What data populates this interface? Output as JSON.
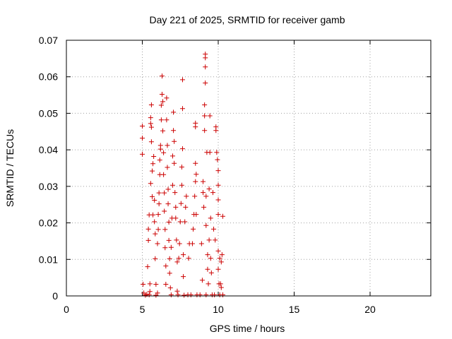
{
  "chart_data": {
    "type": "scatter",
    "title": "Day 221 of 2025, SRMTID for receiver gamb",
    "xlabel": "GPS time / hours",
    "ylabel": "SRMTID / TECUs",
    "xlim": [
      0,
      24
    ],
    "ylim": [
      0,
      0.07
    ],
    "x_ticks": [
      0,
      5,
      10,
      15,
      20
    ],
    "x_tick_labels": [
      "0",
      "5",
      "10",
      "15",
      "20"
    ],
    "y_ticks": [
      0,
      0.01,
      0.02,
      0.03,
      0.04,
      0.05,
      0.06,
      0.07
    ],
    "y_tick_labels": [
      "0",
      "0.01",
      "0.02",
      "0.03",
      "0.04",
      "0.05",
      "0.06",
      "0.07"
    ],
    "grid": true,
    "marker": "+",
    "marker_color": "#cc0000",
    "series": [
      {
        "name": "SRMTID",
        "points": [
          [
            5.0,
            0.0465
          ],
          [
            5.0,
            0.0432
          ],
          [
            5.0,
            0.0388
          ],
          [
            5.05,
            0.0032
          ],
          [
            5.1,
            0.0008
          ],
          [
            5.2,
            0.0002
          ],
          [
            5.3,
            0.0004
          ],
          [
            5.35,
            0.008
          ],
          [
            5.4,
            0.0183
          ],
          [
            5.4,
            0.0152
          ],
          [
            5.45,
            0.0222
          ],
          [
            5.45,
            0.0003
          ],
          [
            5.5,
            0.0033
          ],
          [
            5.5,
            0.0012
          ],
          [
            5.55,
            0.0308
          ],
          [
            5.55,
            0.0488
          ],
          [
            5.55,
            0.0472
          ],
          [
            5.6,
            0.0523
          ],
          [
            5.6,
            0.0462
          ],
          [
            5.6,
            0.0422
          ],
          [
            5.65,
            0.0342
          ],
          [
            5.65,
            0.0272
          ],
          [
            5.7,
            0.0222
          ],
          [
            5.7,
            0.0362
          ],
          [
            5.75,
            0.0382
          ],
          [
            5.8,
            0.0262
          ],
          [
            5.8,
            0.0203
          ],
          [
            5.85,
            0.0102
          ],
          [
            5.85,
            0.017
          ],
          [
            5.9,
            0.0002
          ],
          [
            5.9,
            0.0032
          ],
          [
            6.0,
            0.0008
          ],
          [
            6.0,
            0.0143
          ],
          [
            6.05,
            0.0182
          ],
          [
            6.05,
            0.0223
          ],
          [
            6.1,
            0.0252
          ],
          [
            6.1,
            0.0282
          ],
          [
            6.15,
            0.0332
          ],
          [
            6.15,
            0.0372
          ],
          [
            6.2,
            0.0402
          ],
          [
            6.2,
            0.0412
          ],
          [
            6.25,
            0.0482
          ],
          [
            6.25,
            0.0522
          ],
          [
            6.3,
            0.0552
          ],
          [
            6.3,
            0.0602
          ],
          [
            6.35,
            0.0532
          ],
          [
            6.35,
            0.0452
          ],
          [
            6.4,
            0.0392
          ],
          [
            6.4,
            0.0332
          ],
          [
            6.45,
            0.0282
          ],
          [
            6.45,
            0.0232
          ],
          [
            6.5,
            0.0182
          ],
          [
            6.5,
            0.0132
          ],
          [
            6.55,
            0.0082
          ],
          [
            6.55,
            0.0032
          ],
          [
            6.6,
            0.0482
          ],
          [
            6.6,
            0.0542
          ],
          [
            6.65,
            0.0412
          ],
          [
            6.65,
            0.0352
          ],
          [
            6.7,
            0.0292
          ],
          [
            6.7,
            0.0252
          ],
          [
            6.75,
            0.0202
          ],
          [
            6.75,
            0.0152
          ],
          [
            6.8,
            0.0102
          ],
          [
            6.8,
            0.0062
          ],
          [
            6.85,
            0.0022
          ],
          [
            6.9,
            0.0003
          ],
          [
            6.9,
            0.0133
          ],
          [
            6.95,
            0.0213
          ],
          [
            7.0,
            0.0303
          ],
          [
            7.0,
            0.0383
          ],
          [
            7.05,
            0.0453
          ],
          [
            7.05,
            0.0503
          ],
          [
            7.1,
            0.0423
          ],
          [
            7.1,
            0.0363
          ],
          [
            7.15,
            0.0283
          ],
          [
            7.2,
            0.0243
          ],
          [
            7.2,
            0.0213
          ],
          [
            7.25,
            0.0153
          ],
          [
            7.3,
            0.0093
          ],
          [
            7.3,
            0.0013
          ],
          [
            7.35,
            0.0003
          ],
          [
            7.4,
            0.0103
          ],
          [
            7.45,
            0.0143
          ],
          [
            7.5,
            0.0203
          ],
          [
            7.55,
            0.0253
          ],
          [
            7.6,
            0.0303
          ],
          [
            7.6,
            0.0353
          ],
          [
            7.65,
            0.0403
          ],
          [
            7.65,
            0.0513
          ],
          [
            7.65,
            0.0592
          ],
          [
            7.7,
            0.0113
          ],
          [
            7.7,
            0.0053
          ],
          [
            7.75,
            0.0002
          ],
          [
            7.8,
            0.0203
          ],
          [
            7.85,
            0.0243
          ],
          [
            7.9,
            0.0273
          ],
          [
            8.0,
            0.0003
          ],
          [
            8.05,
            0.0103
          ],
          [
            8.1,
            0.0143
          ],
          [
            8.2,
            0.0003
          ],
          [
            8.3,
            0.0143
          ],
          [
            8.35,
            0.0183
          ],
          [
            8.4,
            0.0223
          ],
          [
            8.45,
            0.0273
          ],
          [
            8.5,
            0.0313
          ],
          [
            8.5,
            0.0363
          ],
          [
            8.5,
            0.0473
          ],
          [
            8.5,
            0.0463
          ],
          [
            8.55,
            0.0333
          ],
          [
            8.55,
            0.0223
          ],
          [
            8.6,
            0.0003
          ],
          [
            8.8,
            0.0003
          ],
          [
            8.9,
            0.0143
          ],
          [
            8.95,
            0.0043
          ],
          [
            9.0,
            0.0313
          ],
          [
            9.0,
            0.0283
          ],
          [
            9.05,
            0.0243
          ],
          [
            9.1,
            0.0453
          ],
          [
            9.1,
            0.0493
          ],
          [
            9.1,
            0.0523
          ],
          [
            9.15,
            0.0583
          ],
          [
            9.15,
            0.0627
          ],
          [
            9.15,
            0.0652
          ],
          [
            9.15,
            0.0662
          ],
          [
            9.2,
            0.0003
          ],
          [
            9.2,
            0.0273
          ],
          [
            9.2,
            0.0193
          ],
          [
            9.25,
            0.0393
          ],
          [
            9.3,
            0.0113
          ],
          [
            9.3,
            0.0073
          ],
          [
            9.35,
            0.0033
          ],
          [
            9.4,
            0.0153
          ],
          [
            9.4,
            0.0293
          ],
          [
            9.45,
            0.0393
          ],
          [
            9.45,
            0.0493
          ],
          [
            9.5,
            0.0213
          ],
          [
            9.5,
            0.0103
          ],
          [
            9.55,
            0.0063
          ],
          [
            9.6,
            0.0003
          ],
          [
            9.65,
            0.0283
          ],
          [
            9.7,
            0.0183
          ],
          [
            9.75,
            0.0003
          ],
          [
            9.8,
            0.0153
          ],
          [
            9.85,
            0.0463
          ],
          [
            9.85,
            0.0453
          ],
          [
            9.9,
            0.0393
          ],
          [
            9.95,
            0.0373
          ],
          [
            10.0,
            0.0343
          ],
          [
            10.0,
            0.0303
          ],
          [
            10.0,
            0.0263
          ],
          [
            10.0,
            0.0223
          ],
          [
            10.0,
            0.0123
          ],
          [
            10.0,
            0.0073
          ],
          [
            10.05,
            0.0033
          ],
          [
            10.1,
            0.0003
          ],
          [
            10.1,
            0.0103
          ],
          [
            10.15,
            0.0033
          ],
          [
            10.2,
            0.0023
          ],
          [
            10.2,
            0.0093
          ],
          [
            10.25,
            0.0113
          ],
          [
            10.3,
            0.0218
          ],
          [
            10.3,
            0.0003
          ]
        ]
      }
    ]
  }
}
